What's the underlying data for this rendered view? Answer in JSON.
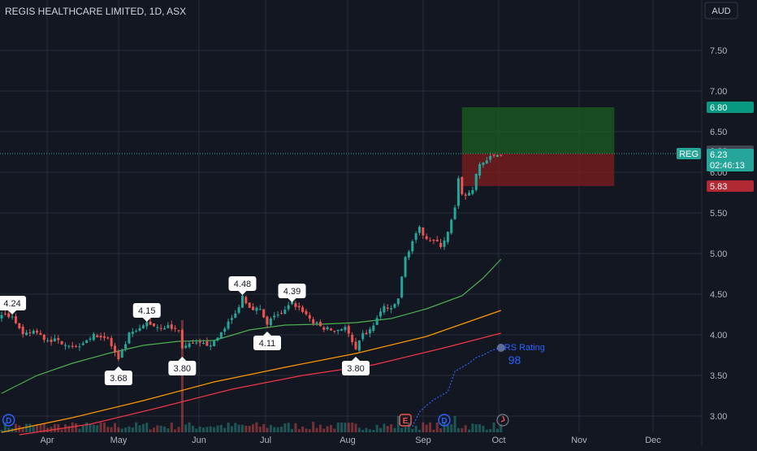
{
  "header": {
    "symbol_title": "REGIS HEALTHCARE LIMITED, 1D, ASX",
    "currency": "AUD"
  },
  "colors": {
    "background": "#131722",
    "grid": "#2a2e39",
    "up": "#26a69a",
    "down": "#ef5350",
    "ma_green": "#4caf50",
    "ma_orange": "#ff9800",
    "ma_red": "#f23645",
    "rs_line": "#2962ff",
    "target_zone": "#1b5e20",
    "stop_zone": "#7f1d1d",
    "price_badge": "#26a69a"
  },
  "chart_data": {
    "type": "candlestick",
    "symbol": "REG",
    "y_ticks": [
      "3.00",
      "3.50",
      "4.00",
      "4.50",
      "5.00",
      "5.50",
      "6.00",
      "6.50",
      "7.00",
      "7.50"
    ],
    "y_range": [
      2.85,
      7.9
    ],
    "x_months": [
      "Apr",
      "May",
      "Jun",
      "Jul",
      "Aug",
      "Sep",
      "Oct",
      "Nov",
      "Dec"
    ],
    "last_price": {
      "symbol": "REG",
      "price": "6.23",
      "countdown": "02:46:13"
    },
    "high_label": "6.26",
    "target_label": "6.80",
    "stop_label": "5.83",
    "position": {
      "entry": 6.23,
      "target": 6.8,
      "stop": 5.83,
      "start_day": 130,
      "end_day": 173
    },
    "annotations": [
      {
        "price": "4.24",
        "placement": "above",
        "day": 3
      },
      {
        "price": "4.15",
        "placement": "above",
        "day": 41
      },
      {
        "price": "4.48",
        "placement": "above",
        "day": 68
      },
      {
        "price": "4.39",
        "placement": "above",
        "day": 82
      },
      {
        "price": "3.68",
        "placement": "below",
        "day": 33
      },
      {
        "price": "3.80",
        "placement": "below",
        "day": 51
      },
      {
        "price": "4.11",
        "placement": "below",
        "day": 75
      },
      {
        "price": "3.80",
        "placement": "below",
        "day": 100
      }
    ],
    "event_markers": [
      {
        "label": "D",
        "day": 2,
        "color": "#2962ff"
      },
      {
        "label": "E",
        "day": 114,
        "color": "#ef5350"
      },
      {
        "label": "D",
        "day": 125,
        "color": "#2962ff"
      }
    ],
    "rs_label": "RS Rating",
    "rs_value": "98",
    "close_path": [
      [
        0,
        4.22
      ],
      [
        3,
        4.24
      ],
      [
        6,
        3.98
      ],
      [
        9,
        4.05
      ],
      [
        12,
        3.95
      ],
      [
        15,
        3.93
      ],
      [
        18,
        3.9
      ],
      [
        21,
        3.85
      ],
      [
        24,
        3.95
      ],
      [
        27,
        4.0
      ],
      [
        30,
        3.95
      ],
      [
        33,
        3.68
      ],
      [
        36,
        4.0
      ],
      [
        39,
        4.06
      ],
      [
        41,
        4.15
      ],
      [
        44,
        4.1
      ],
      [
        47,
        4.1
      ],
      [
        50,
        4.05
      ],
      [
        51,
        3.85
      ],
      [
        54,
        3.88
      ],
      [
        57,
        3.88
      ],
      [
        60,
        3.9
      ],
      [
        63,
        4.1
      ],
      [
        66,
        4.25
      ],
      [
        68,
        4.48
      ],
      [
        70,
        4.35
      ],
      [
        73,
        4.3
      ],
      [
        75,
        4.11
      ],
      [
        77,
        4.25
      ],
      [
        79,
        4.25
      ],
      [
        82,
        4.39
      ],
      [
        85,
        4.3
      ],
      [
        88,
        4.15
      ],
      [
        91,
        4.08
      ],
      [
        94,
        4.05
      ],
      [
        97,
        4.1
      ],
      [
        100,
        3.8
      ],
      [
        102,
        4.0
      ],
      [
        104,
        4.05
      ],
      [
        106,
        4.2
      ],
      [
        108,
        4.35
      ],
      [
        110,
        4.3
      ],
      [
        112,
        4.45
      ],
      [
        114,
        4.95
      ],
      [
        116,
        5.15
      ],
      [
        118,
        5.3
      ],
      [
        120,
        5.2
      ],
      [
        122,
        5.15
      ],
      [
        124,
        5.1
      ],
      [
        126,
        5.25
      ],
      [
        128,
        5.55
      ],
      [
        129,
        5.9
      ],
      [
        130,
        5.75
      ],
      [
        131,
        5.7
      ],
      [
        133,
        5.8
      ],
      [
        135,
        6.1
      ],
      [
        137,
        6.15
      ],
      [
        139,
        6.2
      ],
      [
        141,
        6.23
      ]
    ],
    "ma_green": [
      [
        0,
        3.28
      ],
      [
        10,
        3.5
      ],
      [
        20,
        3.65
      ],
      [
        30,
        3.77
      ],
      [
        40,
        3.87
      ],
      [
        50,
        3.92
      ],
      [
        60,
        3.93
      ],
      [
        70,
        4.06
      ],
      [
        80,
        4.12
      ],
      [
        90,
        4.13
      ],
      [
        100,
        4.15
      ],
      [
        110,
        4.2
      ],
      [
        120,
        4.32
      ],
      [
        130,
        4.48
      ],
      [
        136,
        4.7
      ],
      [
        141,
        4.93
      ]
    ],
    "ma_orange": [
      [
        0,
        2.8
      ],
      [
        20,
        2.98
      ],
      [
        40,
        3.19
      ],
      [
        60,
        3.42
      ],
      [
        80,
        3.6
      ],
      [
        100,
        3.77
      ],
      [
        120,
        3.98
      ],
      [
        141,
        4.3
      ]
    ],
    "ma_red": [
      [
        5,
        2.77
      ],
      [
        25,
        2.9
      ],
      [
        45,
        3.11
      ],
      [
        65,
        3.33
      ],
      [
        85,
        3.5
      ],
      [
        105,
        3.63
      ],
      [
        125,
        3.84
      ],
      [
        141,
        4.02
      ]
    ],
    "rs_path": [
      [
        116,
        2.87
      ],
      [
        118,
        3.05
      ],
      [
        120,
        3.13
      ],
      [
        122,
        3.2
      ],
      [
        124,
        3.25
      ],
      [
        126,
        3.3
      ],
      [
        128,
        3.55
      ],
      [
        130,
        3.6
      ],
      [
        132,
        3.65
      ],
      [
        134,
        3.72
      ],
      [
        136,
        3.75
      ],
      [
        138,
        3.8
      ],
      [
        140,
        3.83
      ],
      [
        141,
        3.84
      ]
    ]
  }
}
